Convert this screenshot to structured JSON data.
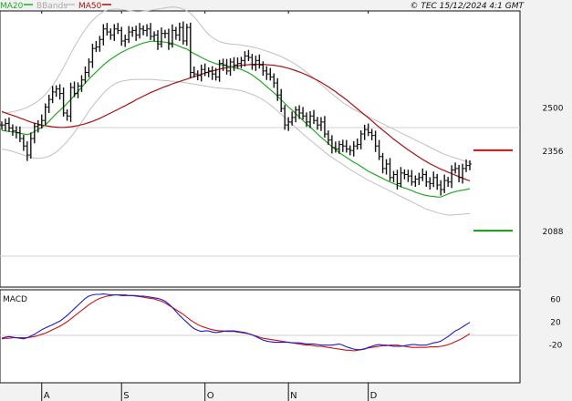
{
  "header": {
    "legend": [
      {
        "label": "MA20",
        "color": "#22aa22"
      },
      {
        "label": "BBands",
        "color": "#bbbbbb"
      },
      {
        "label": "MA50",
        "color": "#aa1111"
      }
    ],
    "source": "© TEC 15/12/2024 4:1 GMT"
  },
  "colors": {
    "price": "#111111",
    "ma20": "#22aa22",
    "ma50": "#aa1111",
    "bbands": "#c0c0c0",
    "macd": "#1a1acc",
    "signal": "#cc1111",
    "panel_bg": "#ffffff",
    "outer_bg": "#f2f2f2",
    "grid": "#d0d0d0",
    "levels": {
      "resistance": "#cc1111",
      "support": "#119911"
    }
  },
  "chart_data": [
    {
      "type": "line",
      "title": "",
      "x_tick_labels": [
        "A",
        "S",
        "O",
        "N",
        "D"
      ],
      "y_tick_labels": [
        "2500"
      ],
      "ylim": [
        1900,
        2820
      ],
      "grid": true,
      "levels": [
        {
          "name": "resistance",
          "value": 2356,
          "label": "2356"
        },
        {
          "name": "support",
          "value": 2088,
          "label": "2088"
        }
      ],
      "series": [
        {
          "name": "price",
          "style": "ohlc-bars",
          "values": [
            2440,
            2445,
            2430,
            2420,
            2415,
            2395,
            2370,
            2340,
            2395,
            2435,
            2440,
            2455,
            2500,
            2525,
            2550,
            2560,
            2545,
            2480,
            2470,
            2565,
            2545,
            2570,
            2590,
            2615,
            2650,
            2695,
            2700,
            2725,
            2760,
            2750,
            2740,
            2760,
            2755,
            2720,
            2725,
            2750,
            2755,
            2740,
            2760,
            2755,
            2760,
            2735,
            2740,
            2710,
            2745,
            2745,
            2710,
            2755,
            2740,
            2765,
            2720,
            2765,
            2615,
            2610,
            2605,
            2625,
            2615,
            2620,
            2610,
            2600,
            2645,
            2640,
            2620,
            2650,
            2640,
            2645,
            2655,
            2670,
            2665,
            2640,
            2655,
            2640,
            2620,
            2610,
            2600,
            2580,
            2540,
            2495,
            2440,
            2450,
            2465,
            2490,
            2480,
            2470,
            2450,
            2470,
            2455,
            2440,
            2450,
            2410,
            2390,
            2365,
            2360,
            2375,
            2370,
            2360,
            2355,
            2370,
            2375,
            2410,
            2425,
            2415,
            2405,
            2370,
            2335,
            2295,
            2310,
            2265,
            2275,
            2245,
            2280,
            2275,
            2270,
            2250,
            2260,
            2265,
            2275,
            2250,
            2245,
            2265,
            2240,
            2225,
            2255,
            2250,
            2290,
            2295,
            2265,
            2295,
            2305,
            2310
          ],
          "note": "daily closes, Aug to mid-Dec 2024"
        },
        {
          "name": "MA20",
          "values": [
            2422,
            2420,
            2418,
            2417,
            2415,
            2412,
            2410,
            2408,
            2412,
            2418,
            2425,
            2432,
            2440,
            2452,
            2465,
            2478,
            2488,
            2500,
            2512,
            2525,
            2538,
            2552,
            2566,
            2580,
            2593,
            2605,
            2617,
            2628,
            2640,
            2650,
            2659,
            2667,
            2675,
            2682,
            2688,
            2694,
            2699,
            2704,
            2709,
            2713,
            2716,
            2719,
            2719,
            2718,
            2717,
            2716,
            2714,
            2712,
            2707,
            2702,
            2697,
            2693,
            2685,
            2678,
            2672,
            2665,
            2659,
            2653,
            2649,
            2644,
            2642,
            2640,
            2637,
            2634,
            2631,
            2628,
            2625,
            2620,
            2614,
            2607,
            2598,
            2589,
            2579,
            2568,
            2558,
            2547,
            2536,
            2524,
            2512,
            2500,
            2490,
            2478,
            2467,
            2455,
            2444,
            2433,
            2422,
            2410,
            2399,
            2389,
            2378,
            2368,
            2358,
            2348,
            2340,
            2332,
            2324,
            2316,
            2310,
            2302,
            2294,
            2286,
            2280,
            2274,
            2268,
            2262,
            2256,
            2250,
            2245,
            2240,
            2234,
            2230,
            2226,
            2222,
            2216,
            2212,
            2208,
            2205,
            2203,
            2202,
            2200,
            2200,
            2205,
            2210,
            2215,
            2218,
            2221,
            2223,
            2225,
            2228
          ]
        },
        {
          "name": "MA50",
          "values": [
            2485,
            2480,
            2476,
            2472,
            2468,
            2463,
            2459,
            2454,
            2450,
            2446,
            2443,
            2440,
            2438,
            2436,
            2434,
            2433,
            2432,
            2432,
            2433,
            2434,
            2436,
            2438,
            2441,
            2444,
            2448,
            2452,
            2457,
            2462,
            2468,
            2474,
            2480,
            2486,
            2492,
            2498,
            2504,
            2511,
            2517,
            2524,
            2530,
            2536,
            2542,
            2548,
            2553,
            2558,
            2563,
            2568,
            2572,
            2577,
            2581,
            2585,
            2589,
            2593,
            2597,
            2601,
            2605,
            2609,
            2613,
            2617,
            2620,
            2623,
            2626,
            2629,
            2631,
            2633,
            2635,
            2637,
            2639,
            2640,
            2641,
            2642,
            2642,
            2642,
            2642,
            2641,
            2640,
            2639,
            2637,
            2635,
            2632,
            2629,
            2625,
            2621,
            2617,
            2612,
            2607,
            2601,
            2595,
            2589,
            2582,
            2575,
            2567,
            2559,
            2551,
            2542,
            2533,
            2524,
            2514,
            2504,
            2494,
            2484,
            2474,
            2464,
            2454,
            2443,
            2433,
            2423,
            2413,
            2403,
            2393,
            2384,
            2375,
            2366,
            2357,
            2349,
            2341,
            2333,
            2325,
            2318,
            2311,
            2305,
            2299,
            2293,
            2288,
            2283,
            2278,
            2273,
            2268,
            2263,
            2258,
            2254
          ]
        },
        {
          "name": "BBands upper",
          "values": [
            2480,
            2481,
            2482,
            2484,
            2487,
            2490,
            2494,
            2499,
            2505,
            2512,
            2520,
            2530,
            2542,
            2556,
            2572,
            2590,
            2610,
            2632,
            2655,
            2678,
            2700,
            2720,
            2740,
            2758,
            2774,
            2788,
            2800,
            2810,
            2818,
            2822,
            2825,
            2826,
            2826,
            2825,
            2823,
            2821,
            2819,
            2818,
            2818,
            2819,
            2820,
            2822,
            2824,
            2826,
            2828,
            2830,
            2832,
            2833,
            2832,
            2830,
            2826,
            2820,
            2812,
            2800,
            2786,
            2770,
            2755,
            2742,
            2732,
            2724,
            2718,
            2714,
            2712,
            2710,
            2709,
            2708,
            2706,
            2704,
            2702,
            2700,
            2697,
            2694,
            2690,
            2686,
            2682,
            2678,
            2673,
            2668,
            2662,
            2656,
            2649,
            2642,
            2634,
            2625,
            2616,
            2606,
            2596,
            2586,
            2575,
            2565,
            2554,
            2544,
            2534,
            2524,
            2515,
            2507,
            2499,
            2492,
            2486,
            2480,
            2474,
            2468,
            2462,
            2456,
            2450,
            2444,
            2438,
            2432,
            2426,
            2420,
            2414,
            2408,
            2402,
            2396,
            2390,
            2384,
            2378,
            2372,
            2366,
            2360,
            2354,
            2348,
            2342,
            2338,
            2334,
            2330,
            2326,
            2322,
            2318,
            2315
          ]
        },
        {
          "name": "BBands lower",
          "values": [
            2360,
            2358,
            2355,
            2352,
            2348,
            2344,
            2340,
            2335,
            2332,
            2330,
            2329,
            2330,
            2332,
            2336,
            2342,
            2350,
            2360,
            2372,
            2385,
            2400,
            2415,
            2432,
            2450,
            2468,
            2486,
            2502,
            2518,
            2532,
            2546,
            2558,
            2568,
            2576,
            2582,
            2586,
            2588,
            2590,
            2591,
            2592,
            2592,
            2592,
            2592,
            2592,
            2591,
            2590,
            2589,
            2588,
            2587,
            2586,
            2585,
            2584,
            2582,
            2580,
            2578,
            2576,
            2574,
            2572,
            2570,
            2568,
            2566,
            2564,
            2563,
            2562,
            2561,
            2560,
            2558,
            2556,
            2554,
            2550,
            2546,
            2542,
            2537,
            2531,
            2524,
            2516,
            2507,
            2497,
            2487,
            2476,
            2465,
            2454,
            2443,
            2432,
            2421,
            2410,
            2400,
            2390,
            2380,
            2370,
            2360,
            2350,
            2341,
            2332,
            2324,
            2316,
            2308,
            2300,
            2292,
            2284,
            2277,
            2270,
            2263,
            2256,
            2250,
            2244,
            2238,
            2232,
            2226,
            2220,
            2214,
            2208,
            2202,
            2196,
            2190,
            2184,
            2178,
            2172,
            2166,
            2160,
            2156,
            2152,
            2148,
            2145,
            2142,
            2140,
            2140,
            2141,
            2142,
            2143,
            2144,
            2145
          ]
        }
      ]
    },
    {
      "type": "line",
      "title": "MACD",
      "x_tick_labels": [
        "A",
        "S",
        "O",
        "N",
        "D"
      ],
      "y_tick_labels": [
        "60",
        "20",
        "-20"
      ],
      "ylim": [
        -88,
        75
      ],
      "grid": true,
      "series": [
        {
          "name": "MACD",
          "values": [
            -10,
            -8,
            -7,
            -8,
            -9,
            -10,
            -11,
            -9,
            -6,
            -3,
            1,
            5,
            8,
            11,
            14,
            17,
            20,
            25,
            30,
            36,
            42,
            48,
            54,
            60,
            64,
            66,
            67,
            67,
            68,
            67,
            66,
            66,
            66,
            65,
            65,
            65,
            65,
            65,
            64,
            64,
            63,
            62,
            61,
            60,
            58,
            55,
            50,
            44,
            37,
            30,
            24,
            18,
            12,
            7,
            4,
            2,
            3,
            3,
            1,
            0,
            1,
            2,
            3,
            3,
            3,
            2,
            1,
            0,
            -2,
            -4,
            -7,
            -10,
            -13,
            -15,
            -16,
            -17,
            -17,
            -17,
            -17,
            -17,
            -18,
            -18,
            -18,
            -19,
            -20,
            -20,
            -20,
            -21,
            -22,
            -22,
            -22,
            -22,
            -21,
            -20,
            -22,
            -25,
            -27,
            -29,
            -30,
            -30,
            -29,
            -26,
            -24,
            -22,
            -21,
            -22,
            -22,
            -23,
            -24,
            -24,
            -24,
            -23,
            -22,
            -21,
            -21,
            -22,
            -22,
            -22,
            -20,
            -18,
            -17,
            -15,
            -11,
            -7,
            -2,
            3,
            6,
            10,
            14,
            18
          ]
        },
        {
          "name": "Signal",
          "values": [
            -11,
            -10,
            -10,
            -9,
            -9,
            -9,
            -9,
            -9,
            -8,
            -7,
            -5,
            -3,
            -1,
            2,
            5,
            8,
            11,
            15,
            19,
            24,
            29,
            34,
            39,
            44,
            49,
            53,
            57,
            60,
            62,
            64,
            65,
            66,
            66,
            66,
            66,
            65,
            65,
            64,
            63,
            62,
            61,
            60,
            59,
            57,
            55,
            52,
            48,
            44,
            40,
            36,
            32,
            27,
            22,
            18,
            14,
            11,
            9,
            7,
            5,
            4,
            3,
            3,
            2,
            2,
            2,
            1,
            0,
            -1,
            -2,
            -4,
            -6,
            -8,
            -10,
            -11,
            -12,
            -13,
            -14,
            -15,
            -16,
            -17,
            -18,
            -19,
            -20,
            -21,
            -22,
            -22,
            -23,
            -24,
            -24,
            -25,
            -26,
            -27,
            -28,
            -29,
            -30,
            -31,
            -31,
            -32,
            -31,
            -30,
            -28,
            -27,
            -26,
            -25,
            -24,
            -23,
            -23,
            -22,
            -22,
            -22,
            -23,
            -24,
            -25,
            -26,
            -26,
            -26,
            -26,
            -26,
            -25,
            -25,
            -25,
            -24,
            -23,
            -21,
            -19,
            -16,
            -13,
            -10,
            -6,
            -2
          ]
        }
      ]
    }
  ]
}
